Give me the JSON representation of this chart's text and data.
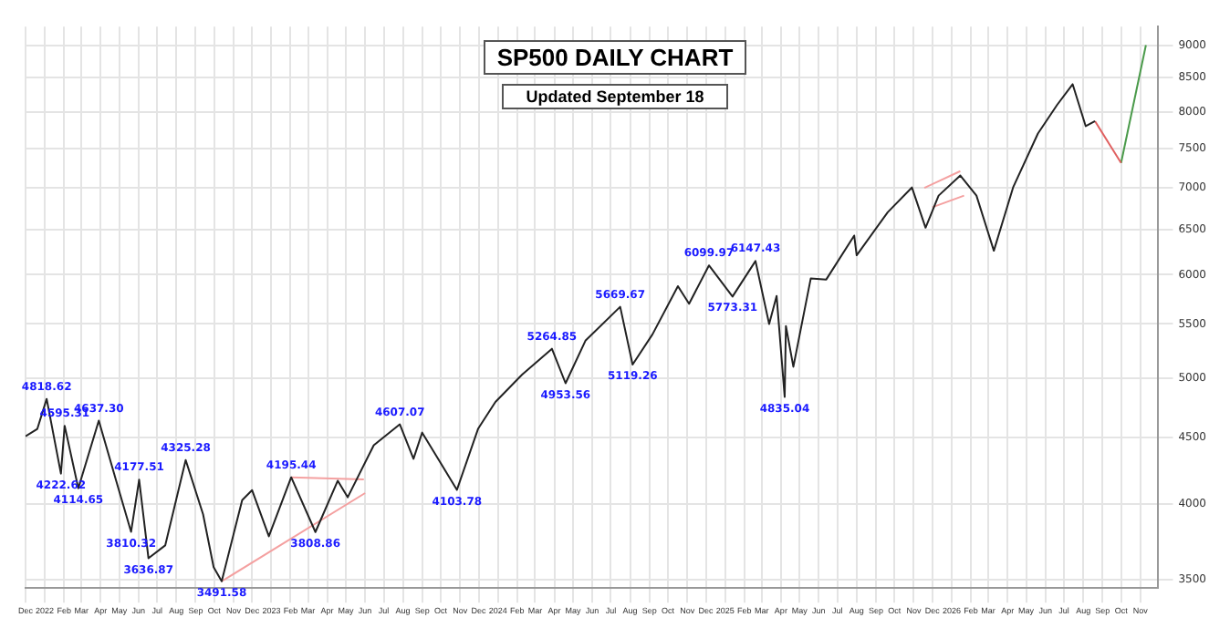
{
  "chart_data": {
    "type": "line",
    "title": "SP500 DAILY CHART",
    "subtitle": "Updated September 18",
    "log": "y",
    "grid": true,
    "legend": false,
    "marker": "none",
    "xlim": [
      "2021-12-01",
      "2026-11-30"
    ],
    "ylim": [
      3450,
      9300
    ],
    "yticks": [
      3500,
      4000,
      4500,
      5000,
      5500,
      6000,
      6500,
      7000,
      7500,
      8000,
      8500,
      9000
    ],
    "xticks": [
      {
        "value": "2021-12-01",
        "label": "Dec"
      },
      {
        "value": "2022-01-01",
        "label": "2022"
      },
      {
        "value": "2022-02-01",
        "label": "Feb"
      },
      {
        "value": "2022-03-01",
        "label": "Mar"
      },
      {
        "value": "2022-04-01",
        "label": "Apr"
      },
      {
        "value": "2022-05-01",
        "label": "May"
      },
      {
        "value": "2022-06-01",
        "label": "Jun"
      },
      {
        "value": "2022-07-01",
        "label": "Jul"
      },
      {
        "value": "2022-08-01",
        "label": "Aug"
      },
      {
        "value": "2022-09-01",
        "label": "Sep"
      },
      {
        "value": "2022-10-01",
        "label": "Oct"
      },
      {
        "value": "2022-11-01",
        "label": "Nov"
      },
      {
        "value": "2022-12-01",
        "label": "Dec"
      },
      {
        "value": "2023-01-01",
        "label": "2023"
      },
      {
        "value": "2023-02-01",
        "label": "Feb"
      },
      {
        "value": "2023-03-01",
        "label": "Mar"
      },
      {
        "value": "2023-04-01",
        "label": "Apr"
      },
      {
        "value": "2023-05-01",
        "label": "May"
      },
      {
        "value": "2023-06-01",
        "label": "Jun"
      },
      {
        "value": "2023-07-01",
        "label": "Jul"
      },
      {
        "value": "2023-08-01",
        "label": "Aug"
      },
      {
        "value": "2023-09-01",
        "label": "Sep"
      },
      {
        "value": "2023-10-01",
        "label": "Oct"
      },
      {
        "value": "2023-11-01",
        "label": "Nov"
      },
      {
        "value": "2023-12-01",
        "label": "Dec"
      },
      {
        "value": "2024-01-01",
        "label": "2024"
      },
      {
        "value": "2024-02-01",
        "label": "Feb"
      },
      {
        "value": "2024-03-01",
        "label": "Mar"
      },
      {
        "value": "2024-04-01",
        "label": "Apr"
      },
      {
        "value": "2024-05-01",
        "label": "May"
      },
      {
        "value": "2024-06-01",
        "label": "Jun"
      },
      {
        "value": "2024-07-01",
        "label": "Jul"
      },
      {
        "value": "2024-08-01",
        "label": "Aug"
      },
      {
        "value": "2024-09-01",
        "label": "Sep"
      },
      {
        "value": "2024-10-01",
        "label": "Oct"
      },
      {
        "value": "2024-11-01",
        "label": "Nov"
      },
      {
        "value": "2024-12-01",
        "label": "Dec"
      },
      {
        "value": "2025-01-01",
        "label": "2025"
      },
      {
        "value": "2025-02-01",
        "label": "Feb"
      },
      {
        "value": "2025-03-01",
        "label": "Mar"
      },
      {
        "value": "2025-04-01",
        "label": "Apr"
      },
      {
        "value": "2025-05-01",
        "label": "May"
      },
      {
        "value": "2025-06-01",
        "label": "Jun"
      },
      {
        "value": "2025-07-01",
        "label": "Jul"
      },
      {
        "value": "2025-08-01",
        "label": "Aug"
      },
      {
        "value": "2025-09-01",
        "label": "Sep"
      },
      {
        "value": "2025-10-01",
        "label": "Oct"
      },
      {
        "value": "2025-11-01",
        "label": "Nov"
      },
      {
        "value": "2025-12-01",
        "label": "Dec"
      },
      {
        "value": "2026-01-01",
        "label": "2026"
      },
      {
        "value": "2026-02-01",
        "label": "Feb"
      },
      {
        "value": "2026-03-01",
        "label": "Mar"
      },
      {
        "value": "2026-04-01",
        "label": "Apr"
      },
      {
        "value": "2026-05-01",
        "label": "May"
      },
      {
        "value": "2026-06-01",
        "label": "Jun"
      },
      {
        "value": "2026-07-01",
        "label": "Jul"
      },
      {
        "value": "2026-08-01",
        "label": "Aug"
      },
      {
        "value": "2026-09-01",
        "label": "Sep"
      },
      {
        "value": "2026-10-01",
        "label": "Oct"
      },
      {
        "value": "2026-11-01",
        "label": "Nov"
      }
    ],
    "series": [
      {
        "color": "#222222",
        "x": [
          "2021-12-01",
          "2021-12-20",
          "2022-01-04",
          "2022-01-27",
          "2022-02-02",
          "2022-02-24",
          "2022-03-29",
          "2022-04-26",
          "2022-05-20",
          "2022-06-02",
          "2022-06-17",
          "2022-07-14",
          "2022-08-16",
          "2022-09-13",
          "2022-09-30",
          "2022-10-13",
          "2022-11-15",
          "2022-12-01",
          "2022-12-28",
          "2023-02-02",
          "2023-03-13",
          "2023-04-18",
          "2023-05-04",
          "2023-06-15",
          "2023-07-27",
          "2023-08-18",
          "2023-09-01",
          "2023-10-27",
          "2023-11-30",
          "2023-12-28",
          "2024-02-09",
          "2024-03-28",
          "2024-04-19",
          "2024-05-21",
          "2024-07-16",
          "2024-08-05",
          "2024-09-06",
          "2024-10-17",
          "2024-11-04",
          "2024-12-06",
          "2025-01-13",
          "2025-02-19",
          "2025-03-13",
          "2025-03-25",
          "2025-04-07",
          "2025-04-09",
          "2025-04-21",
          "2025-05-19",
          "2025-06-13",
          "2025-07-28",
          "2025-08-01",
          "2025-09-20",
          "2025-10-29",
          "2025-11-20",
          "2025-12-11",
          "2026-01-15",
          "2026-02-10",
          "2026-03-10",
          "2026-04-10",
          "2026-05-20",
          "2026-06-20",
          "2026-07-15",
          "2026-08-05",
          "2026-08-20"
        ],
        "values": [
          4510,
          4570,
          4818.62,
          4222.62,
          4595.31,
          4114.65,
          4637.3,
          4170,
          3810.32,
          4177.51,
          3636.87,
          3720,
          4325.28,
          3930,
          3580,
          3491.58,
          4030,
          4100.96,
          3780,
          4195.44,
          3808.86,
          4170,
          4050,
          4440,
          4607.07,
          4335,
          4540,
          4103.78,
          4570,
          4793,
          5030,
          5264.85,
          4953.56,
          5340,
          5669.67,
          5119.26,
          5400,
          5880,
          5700,
          6099.97,
          5773.31,
          6147.43,
          5500,
          5780,
          4835.04,
          5480,
          5100,
          5960,
          5950,
          6430,
          6210,
          6700,
          7000,
          6520,
          6900,
          7150,
          6900,
          6260,
          7000,
          7700,
          8100,
          8400,
          7800,
          7870
        ]
      },
      {
        "color": "#f4a0a0",
        "x": [
          "2022-10-13",
          "2023-06-01"
        ],
        "values": [
          3491.58,
          4080
        ]
      },
      {
        "color": "#f4a0a0",
        "x": [
          "2023-02-02",
          "2023-05-30"
        ],
        "values": [
          4195.44,
          4180
        ]
      },
      {
        "color": "#f4a0a0",
        "x": [
          "2025-11-18",
          "2026-01-15"
        ],
        "values": [
          6995,
          7205
        ]
      },
      {
        "color": "#f4a0a0",
        "x": [
          "2025-12-01",
          "2026-01-21"
        ],
        "values": [
          6760,
          6900
        ]
      },
      {
        "color": "#e06060",
        "x": [
          "2026-08-20",
          "2026-10-01"
        ],
        "values": [
          7870,
          7310
        ]
      },
      {
        "color": "#4a9a4a",
        "x": [
          "2026-10-01",
          "2026-11-10"
        ],
        "values": [
          7310,
          9000
        ]
      }
    ],
    "annotations": [
      {
        "text": "4818.62",
        "x": "2022-01-04",
        "y": 4818.62
      },
      {
        "text": "4222.62",
        "x": "2022-01-27",
        "y": 4222.62
      },
      {
        "text": "4595.31",
        "x": "2022-02-02",
        "y": 4595.31
      },
      {
        "text": "4114.65",
        "x": "2022-02-24",
        "y": 4114.65
      },
      {
        "text": "4637.30",
        "x": "2022-03-29",
        "y": 4637.3
      },
      {
        "text": "3810.32",
        "x": "2022-05-20",
        "y": 3810.32
      },
      {
        "text": "4177.51",
        "x": "2022-06-02",
        "y": 4177.51
      },
      {
        "text": "3636.87",
        "x": "2022-06-17",
        "y": 3636.87
      },
      {
        "text": "4325.28",
        "x": "2022-08-16",
        "y": 4325.28
      },
      {
        "text": "3491.58",
        "x": "2022-10-13",
        "y": 3491.58
      },
      {
        "text": "4195.44",
        "x": "2023-02-02",
        "y": 4195.44
      },
      {
        "text": "3808.86",
        "x": "2023-03-13",
        "y": 3808.86
      },
      {
        "text": "4607.07",
        "x": "2023-07-27",
        "y": 4607.07
      },
      {
        "text": "4103.78",
        "x": "2023-10-27",
        "y": 4103.78
      },
      {
        "text": "5264.85",
        "x": "2024-03-28",
        "y": 5264.85
      },
      {
        "text": "4953.56",
        "x": "2024-04-19",
        "y": 4953.56
      },
      {
        "text": "5669.67",
        "x": "2024-07-16",
        "y": 5669.67
      },
      {
        "text": "5119.26",
        "x": "2024-08-05",
        "y": 5119.26
      },
      {
        "text": "6099.97",
        "x": "2024-12-06",
        "y": 6099.97
      },
      {
        "text": "5773.31",
        "x": "2025-01-13",
        "y": 5773.31
      },
      {
        "text": "6147.43",
        "x": "2025-02-19",
        "y": 6147.43
      },
      {
        "text": "4835.04",
        "x": "2025-04-07",
        "y": 4835.04
      }
    ]
  }
}
